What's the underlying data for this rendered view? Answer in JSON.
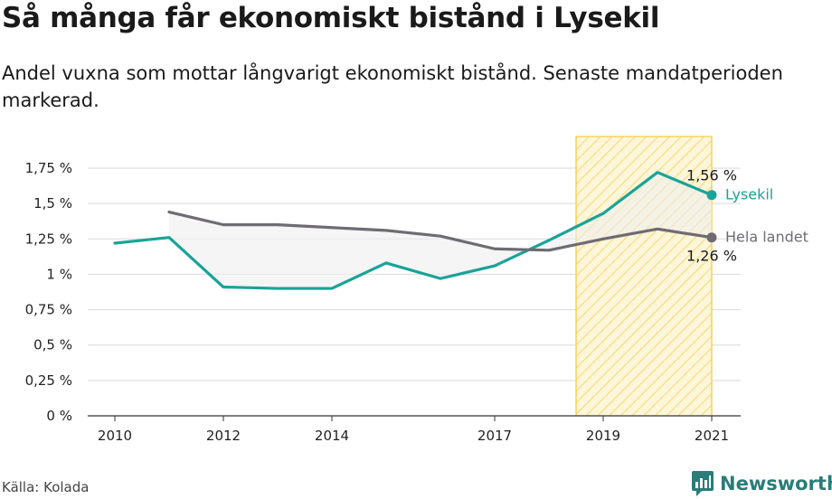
{
  "title": "Så många får ekonomiskt bistånd i Lysekil",
  "subtitle": "Andel vuxna som mottar långvarigt ekonomiskt bistånd. Senaste mandatperioden markerad.",
  "source": "Källa: Kolada",
  "brand": "Newsworthy",
  "colors": {
    "lysekil": "#1aa398",
    "hela_landet": "#6e6b73",
    "highlight_fill": "#fdf3c4",
    "highlight_stroke": "#f7c948",
    "grid": "#d9d9d9",
    "brand": "#2a7c78"
  },
  "chart_data": {
    "type": "line",
    "x_ticks": [
      2010,
      2012,
      2014,
      2017,
      2019,
      2021
    ],
    "y_ticks": [
      0,
      0.25,
      0.5,
      0.75,
      1,
      1.25,
      1.5,
      1.75
    ],
    "y_tick_labels": [
      "0 %",
      "0,25 %",
      "0,5 %",
      "0,75 %",
      "1 %",
      "1,25 %",
      "1,5 %",
      "1,75 %"
    ],
    "ylim": [
      0,
      1.75
    ],
    "xlim": [
      2010,
      2021
    ],
    "highlight_period": [
      2018.5,
      2021
    ],
    "grid": true,
    "series": [
      {
        "name": "Lysekil",
        "x": [
          2010,
          2011,
          2012,
          2013,
          2014,
          2015,
          2016,
          2017,
          2018,
          2019,
          2020,
          2021
        ],
        "values": [
          1.22,
          1.26,
          0.91,
          0.9,
          0.9,
          1.08,
          0.97,
          1.06,
          1.24,
          1.43,
          1.72,
          1.56
        ],
        "end_label": "1,56 %"
      },
      {
        "name": "Hela landet",
        "x": [
          2011,
          2012,
          2013,
          2014,
          2015,
          2016,
          2017,
          2018,
          2019,
          2020,
          2021
        ],
        "values": [
          1.44,
          1.35,
          1.35,
          1.33,
          1.31,
          1.27,
          1.18,
          1.17,
          1.25,
          1.32,
          1.26
        ],
        "end_label": "1,26 %"
      }
    ]
  }
}
